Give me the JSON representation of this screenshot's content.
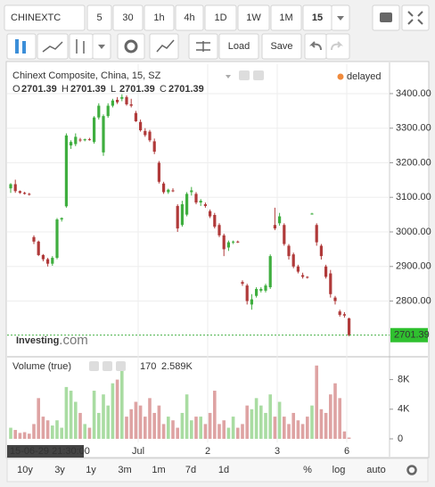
{
  "toolbar": {
    "symbol": "CHINEXTC",
    "intervals": [
      "5",
      "30",
      "1h",
      "4h",
      "1D",
      "1W",
      "1M",
      "15"
    ],
    "load": "Load",
    "save": "Save"
  },
  "chart_data": {
    "type": "candlestick",
    "title": "Chinext Composite, China, 15, SZ",
    "status": "delayed",
    "ohlc_legend": {
      "labels": [
        "O",
        "H",
        "L",
        "C"
      ],
      "values": [
        2701.39,
        2701.39,
        2701.39,
        2701.39
      ]
    },
    "last_price": 2701.39,
    "watermark": [
      "Investing",
      ".com"
    ],
    "up_color": "#3fae3f",
    "down_color": "#b03a3a",
    "open": [
      3126,
      3138,
      3118,
      3113,
      3110,
      2985,
      2972,
      2933,
      2921,
      2908,
      2925,
      3036,
      3074,
      3250,
      3254,
      3267,
      3265,
      3268,
      3260,
      3331,
      3230,
      3335,
      3365,
      3382,
      3385,
      3390,
      3369,
      3344,
      3318,
      3292,
      3290,
      3262,
      3200,
      3140,
      3115,
      3120,
      3075,
      3020,
      3050,
      3115,
      3110,
      3085,
      3080,
      3060,
      3049,
      3020,
      2990,
      2955,
      2970,
      2972,
      2855,
      2845,
      2790,
      2815,
      2830,
      2830,
      2840,
      3020,
      3025,
      3020,
      2960,
      2935,
      2900,
      2875,
      2870,
      3052,
      3020,
      2960,
      2900,
      2880,
      2810,
      2770,
      2762,
      2750
    ],
    "high": [
      3141,
      3151,
      3120,
      3116,
      3113,
      2990,
      2975,
      2936,
      2925,
      2930,
      3040,
      3042,
      3285,
      3265,
      3285,
      3272,
      3270,
      3272,
      3335,
      3372,
      3340,
      3372,
      3385,
      3390,
      3398,
      3395,
      3385,
      3350,
      3325,
      3300,
      3295,
      3270,
      3205,
      3145,
      3125,
      3126,
      3080,
      3090,
      3115,
      3130,
      3115,
      3095,
      3085,
      3065,
      3055,
      3025,
      2995,
      2975,
      2975,
      2975,
      2860,
      2850,
      2820,
      2840,
      2840,
      2850,
      2935,
      3070,
      3055,
      3025,
      2965,
      2940,
      2905,
      2882,
      2872,
      3055,
      3025,
      2965,
      2905,
      2890,
      2815,
      2775,
      2768,
      2752
    ],
    "low": [
      3113,
      3113,
      3110,
      3108,
      3105,
      2965,
      2930,
      2915,
      2900,
      2902,
      2921,
      3030,
      3070,
      3240,
      3248,
      3260,
      3262,
      3264,
      3255,
      3325,
      3220,
      3330,
      3360,
      3370,
      3378,
      3365,
      3360,
      3318,
      3290,
      3275,
      3260,
      3225,
      3140,
      3110,
      3110,
      3115,
      3000,
      3015,
      3045,
      3105,
      3080,
      3075,
      3070,
      3040,
      3010,
      2985,
      2930,
      2945,
      2965,
      2968,
      2844,
      2790,
      2775,
      2810,
      2825,
      2825,
      2835,
      3005,
      3018,
      2960,
      2920,
      2895,
      2880,
      2865,
      2865,
      3050,
      2960,
      2920,
      2865,
      2810,
      2790,
      2755,
      2752,
      2698
    ],
    "close": [
      3138,
      3118,
      3113,
      3110,
      3108,
      2972,
      2933,
      2921,
      2908,
      2925,
      3036,
      3040,
      3279,
      3260,
      3275,
      3265,
      3268,
      3266,
      3331,
      3365,
      3335,
      3365,
      3380,
      3375,
      3390,
      3369,
      3365,
      3320,
      3294,
      3280,
      3265,
      3232,
      3145,
      3115,
      3122,
      3118,
      3010,
      3080,
      3110,
      3120,
      3085,
      3090,
      3075,
      3045,
      3015,
      2990,
      2950,
      2970,
      2972,
      2970,
      2850,
      2800,
      2805,
      2835,
      2835,
      2845,
      2930,
      3010,
      3045,
      2965,
      2930,
      2900,
      2885,
      2870,
      2868,
      3053,
      2970,
      2930,
      2870,
      2820,
      2800,
      2760,
      2758,
      2701.39
    ],
    "ylim": [
      2644,
      3485
    ],
    "yticks": [
      {
        "value": 3400,
        "label": "3400.00"
      },
      {
        "value": 3300,
        "label": "3300.00"
      },
      {
        "value": 3200,
        "label": "3200.00"
      },
      {
        "value": 3100,
        "label": "3100.00"
      },
      {
        "value": 3000,
        "label": "3000.00"
      },
      {
        "value": 2900,
        "label": "2900.00"
      },
      {
        "value": 2800,
        "label": "2800.00"
      }
    ],
    "xticks": [
      {
        "value": 27.5,
        "label": "Jul"
      },
      {
        "value": 42.5,
        "label": "2"
      },
      {
        "value": 57.5,
        "label": "3"
      },
      {
        "value": 72.5,
        "label": "6"
      }
    ],
    "crosshair_date": "15-06-29 21:30:00",
    "volume": {
      "title": "Volume (true)",
      "last": 170,
      "ma_label": "2.589K",
      "values": [
        1500,
        1200,
        800,
        900,
        700,
        2000,
        5500,
        3000,
        2500,
        1800,
        2500,
        1500,
        7000,
        6500,
        5000,
        3500,
        2000,
        1500,
        6500,
        3500,
        6000,
        4500,
        7500,
        8000,
        9800,
        3000,
        4000,
        5000,
        4500,
        3000,
        5500,
        3500,
        4500,
        2000,
        3000,
        2500,
        1500,
        3500,
        6000,
        2500,
        3000,
        3000,
        2000,
        3500,
        6500,
        2000,
        2500,
        1500,
        3000,
        1500,
        2000,
        4500,
        4000,
        5500,
        4500,
        3500,
        6000,
        3000,
        5000,
        3000,
        2000,
        3500,
        2500,
        2000,
        3000,
        4500,
        9900,
        4000,
        3500,
        6000,
        7500,
        5500,
        1000,
        170
      ],
      "ylim": [
        0,
        10600
      ],
      "yticks": [
        {
          "value": 8000,
          "label": "8K"
        },
        {
          "value": 4000,
          "label": "4K"
        },
        0
      ],
      "up_color": "#a9dca2",
      "down_color": "#dea3a3"
    }
  },
  "range_bar": {
    "ranges": [
      "10y",
      "3y",
      "1y",
      "3m",
      "1m",
      "7d",
      "1d"
    ],
    "percent": "%",
    "log": "log",
    "auto": "auto"
  }
}
